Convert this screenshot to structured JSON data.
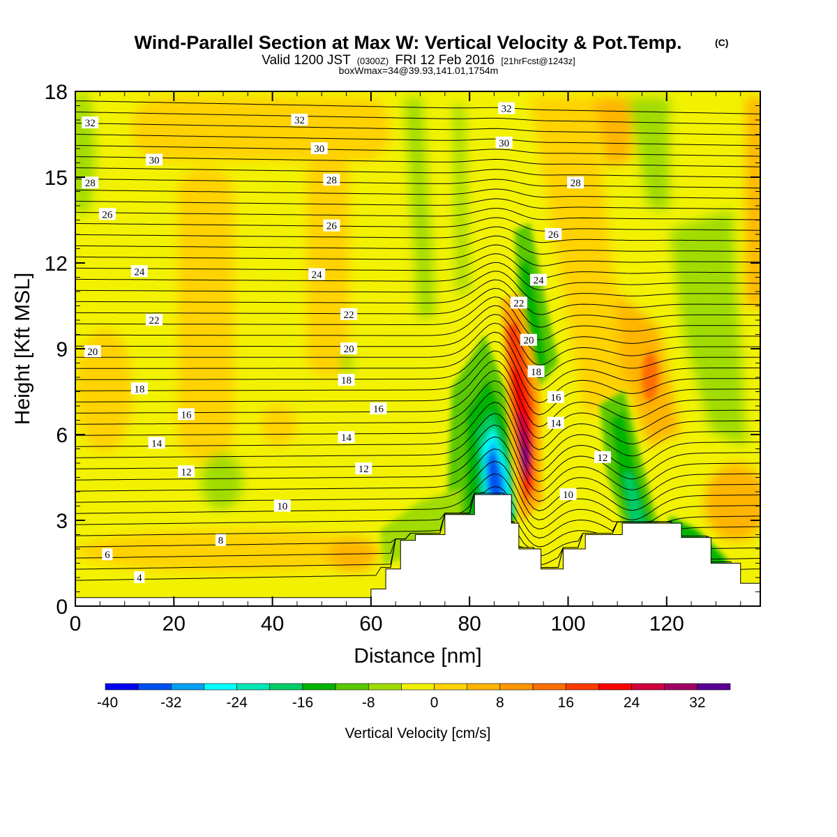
{
  "chart_data": {
    "type": "heatmap",
    "title": "Wind-Parallel Section at Max W: Vertical Velocity & Pot.Temp.",
    "title_mark": "(C)",
    "subtitle_prefix": "Valid 1200 JST",
    "subtitle_utc": "(0300Z)",
    "subtitle_date": "FRI 12 Feb 2016",
    "subtitle_fcst": "[21hrFcst@1243z]",
    "subtitle2": "boxWmax=34@39.93,141.01,1754m",
    "xlabel": "Distance [nm]",
    "ylabel": "Height [Kft MSL]",
    "xlim": [
      0,
      139
    ],
    "ylim": [
      0,
      18
    ],
    "x_ticks": [
      "0",
      "20",
      "40",
      "60",
      "80",
      "100",
      "120"
    ],
    "y_ticks": [
      "0",
      "3",
      "6",
      "9",
      "12",
      "15",
      "18"
    ],
    "colorbar": {
      "label": "Vertical Velocity [cm/s]",
      "ticks": [
        "-40",
        "-32",
        "-24",
        "-16",
        "-8",
        "0",
        "8",
        "16",
        "24",
        "32"
      ],
      "colors": [
        "#0000f0",
        "#0050f0",
        "#00a0f5",
        "#00ffff",
        "#00e6b4",
        "#00cc66",
        "#00b400",
        "#5ac800",
        "#a0dc00",
        "#f0f000",
        "#ffd200",
        "#ffb400",
        "#ff9600",
        "#ff6e00",
        "#ff3c00",
        "#ff0000",
        "#d2003c",
        "#a00064",
        "#5a0096"
      ]
    },
    "theta_labels": [
      "4",
      "6",
      "8",
      "10",
      "12",
      "14",
      "16",
      "18",
      "20",
      "22",
      "24",
      "26",
      "28",
      "30",
      "32"
    ],
    "terrain_kft": [
      {
        "x": 0,
        "h": 0.3
      },
      {
        "x": 49,
        "h": 0.3
      },
      {
        "x": 59,
        "h": 0.6
      },
      {
        "x": 62,
        "h": 1.3
      },
      {
        "x": 65,
        "h": 2.3
      },
      {
        "x": 68,
        "h": 2.5
      },
      {
        "x": 75,
        "h": 3.2
      },
      {
        "x": 81,
        "h": 3.9
      },
      {
        "x": 87,
        "h": 3.9
      },
      {
        "x": 87.1,
        "h": 2.9
      },
      {
        "x": 90,
        "h": 2.0
      },
      {
        "x": 94,
        "h": 1.3
      },
      {
        "x": 99,
        "h": 2.0
      },
      {
        "x": 103,
        "h": 2.5
      },
      {
        "x": 107,
        "h": 2.5
      },
      {
        "x": 110,
        "h": 2.9
      },
      {
        "x": 117,
        "h": 2.9
      },
      {
        "x": 122,
        "h": 2.4
      },
      {
        "x": 129,
        "h": 1.5
      },
      {
        "x": 134,
        "h": 0.8
      },
      {
        "x": 139,
        "h": 0.8
      }
    ]
  }
}
